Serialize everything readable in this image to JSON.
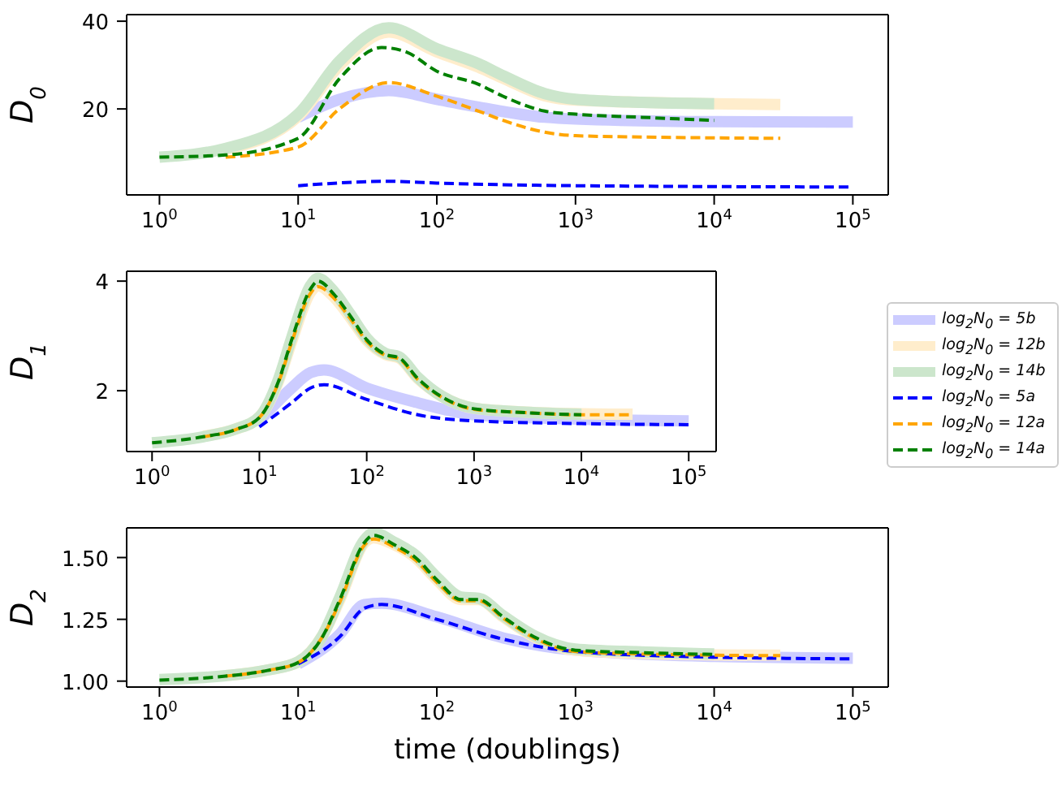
{
  "chart_data": [
    {
      "type": "line",
      "ylabel": "D$_{0}$",
      "log": "x",
      "xlim": [
        0.58,
        180000
      ],
      "ylim": [
        0.4,
        41.5
      ],
      "yticks": [
        20,
        40
      ],
      "xticks": [
        {
          "value": 1,
          "label": "10$^{0}$"
        },
        {
          "value": 10,
          "label": "10$^{1}$"
        },
        {
          "value": 100,
          "label": "10$^{2}$"
        },
        {
          "value": 1000,
          "label": "10$^{3}$"
        },
        {
          "value": 10000,
          "label": "10$^{4}$"
        },
        {
          "value": 100000,
          "label": "10$^{5}$"
        }
      ],
      "series": [
        {
          "color": "#ccccff",
          "line_style": "solid",
          "x": [
            10,
            20,
            45,
            100,
            200,
            600,
            1000,
            10000,
            100000
          ],
          "values": [
            18.1,
            22.2,
            24.2,
            22.2,
            20.4,
            18.1,
            17.7,
            17.1,
            17
          ]
        },
        {
          "color": "#ffedcc",
          "line_style": "solid",
          "x": [
            3,
            10,
            20,
            45,
            100,
            200,
            300,
            600,
            1000,
            10000,
            30000
          ],
          "values": [
            10.8,
            18.3,
            30,
            37.5,
            33,
            29.5,
            27,
            23,
            22,
            21.2,
            21
          ]
        },
        {
          "color": "#cce6cc",
          "line_style": "solid",
          "x": [
            1,
            3,
            10,
            20,
            45,
            100,
            200,
            300,
            600,
            1000,
            3000,
            10000
          ],
          "values": [
            9,
            11,
            18.8,
            31,
            38.5,
            33.7,
            30.3,
            27.6,
            23.5,
            22.2,
            21.5,
            21.2
          ]
        },
        {
          "color": "#0000ff",
          "line_style": "dashed",
          "x": [
            10,
            45,
            100,
            1000,
            100000
          ],
          "values": [
            2.5,
            3.5,
            3.1,
            2.5,
            2.2
          ]
        },
        {
          "color": "#ffa500",
          "line_style": "dashed",
          "x": [
            3,
            10,
            20,
            45,
            100,
            200,
            300,
            600,
            1000,
            3000,
            30000
          ],
          "values": [
            9,
            11.3,
            20.1,
            26,
            22.9,
            19.5,
            17.4,
            14.7,
            13.9,
            13.6,
            13.3
          ]
        },
        {
          "color": "#008000",
          "line_style": "dashed",
          "x": [
            1,
            3,
            10,
            20,
            40,
            60,
            100,
            200,
            300,
            600,
            1000,
            3000,
            10000
          ],
          "values": [
            9.0,
            9.5,
            13.3,
            27,
            34,
            33,
            28.6,
            25.6,
            22.9,
            19.5,
            18.8,
            18.1,
            17.4
          ]
        }
      ]
    },
    {
      "type": "line",
      "ylabel": "D$_{1}$",
      "log": "x",
      "legend": "right",
      "xlim": [
        0.58,
        180000
      ],
      "ylim": [
        0.89,
        4.18
      ],
      "yticks": [
        2,
        4
      ],
      "xticks": [
        {
          "value": 1,
          "label": "10$^{0}$"
        },
        {
          "value": 10,
          "label": "10$^{1}$"
        },
        {
          "value": 100,
          "label": "10$^{2}$"
        },
        {
          "value": 1000,
          "label": "10$^{3}$"
        },
        {
          "value": 10000,
          "label": "10$^{4}$"
        },
        {
          "value": 100000,
          "label": "10$^{5}$"
        }
      ],
      "series": [
        {
          "name": "log$_{2}$N$_{0}$ = 5b",
          "color": "#ccccff",
          "line_style": "solid",
          "x": [
            10,
            20,
            30,
            40,
            100,
            300,
            1000,
            10000,
            100000
          ],
          "values": [
            1.45,
            2.05,
            2.33,
            2.38,
            2.05,
            1.78,
            1.56,
            1.48,
            1.45
          ]
        },
        {
          "name": "log$_{2}$N$_{0}$ = 12b",
          "color": "#ffedcc",
          "line_style": "solid",
          "x": [
            3,
            6,
            10,
            15,
            20,
            30,
            35,
            50,
            70,
            100,
            150,
            200,
            300,
            500,
            1000,
            3000,
            10000,
            30000
          ],
          "values": [
            1.17,
            1.3,
            1.52,
            2.16,
            2.9,
            3.8,
            3.92,
            3.7,
            3.34,
            2.92,
            2.66,
            2.6,
            2.22,
            1.9,
            1.68,
            1.61,
            1.58,
            1.57
          ]
        },
        {
          "name": "log$_{2}$N$_{0}$ = 14b",
          "color": "#cce6cc",
          "line_style": "solid",
          "x": [
            1,
            3,
            6,
            10,
            15,
            20,
            30,
            35,
            50,
            70,
            100,
            150,
            200,
            300,
            500,
            1000,
            3000,
            10000
          ],
          "values": [
            1.05,
            1.16,
            1.3,
            1.52,
            2.2,
            2.97,
            3.92,
            4.05,
            3.8,
            3.4,
            2.96,
            2.68,
            2.62,
            2.24,
            1.9,
            1.68,
            1.61,
            1.57
          ]
        },
        {
          "name": "log$_{2}$N$_{0}$ = 5a",
          "color": "#0000ff",
          "line_style": "dashed",
          "x": [
            10,
            20,
            30,
            40,
            100,
            300,
            1000,
            10000,
            100000
          ],
          "values": [
            1.34,
            1.78,
            2.05,
            2.11,
            1.84,
            1.56,
            1.45,
            1.4,
            1.38
          ]
        },
        {
          "name": "log$_{2}$N$_{0}$ = 12a",
          "color": "#ffa500",
          "line_style": "dashed",
          "x": [
            3,
            6,
            10,
            15,
            20,
            30,
            35,
            50,
            70,
            100,
            150,
            200,
            300,
            500,
            1000,
            3000,
            10000,
            30000
          ],
          "values": [
            1.16,
            1.29,
            1.51,
            2.14,
            2.88,
            3.78,
            3.9,
            3.68,
            3.32,
            2.9,
            2.64,
            2.58,
            2.2,
            1.88,
            1.66,
            1.6,
            1.56,
            1.56
          ]
        },
        {
          "name": "log$_{2}$N$_{0}$ = 14a",
          "color": "#008000",
          "line_style": "dashed",
          "x": [
            1,
            3,
            6,
            10,
            15,
            20,
            30,
            35,
            50,
            70,
            100,
            150,
            200,
            300,
            500,
            1000,
            3000,
            10000
          ],
          "values": [
            1.05,
            1.16,
            1.29,
            1.51,
            2.16,
            2.93,
            3.86,
            4.0,
            3.75,
            3.37,
            2.93,
            2.66,
            2.6,
            2.22,
            1.89,
            1.67,
            1.6,
            1.56
          ]
        }
      ]
    },
    {
      "type": "line",
      "ylabel": "D$_{2}$",
      "xlabel": "time (doublings)",
      "log": "x",
      "xlim": [
        0.58,
        180000
      ],
      "ylim": [
        0.976,
        1.62
      ],
      "yticks": [
        {
          "value": 1,
          "label": "1.00"
        },
        {
          "value": 1.25,
          "label": "1.25"
        },
        {
          "value": 1.5,
          "label": "1.50"
        }
      ],
      "xticks": [
        {
          "value": 1,
          "label": "10$^{0}$"
        },
        {
          "value": 10,
          "label": "10$^{1}$"
        },
        {
          "value": 100,
          "label": "10$^{2}$"
        },
        {
          "value": 1000,
          "label": "10$^{3}$"
        },
        {
          "value": 10000,
          "label": "10$^{4}$"
        },
        {
          "value": 100000,
          "label": "10$^{5}$"
        }
      ],
      "series": [
        {
          "color": "#ccccff",
          "line_style": "solid",
          "x": [
            10,
            20,
            30,
            40,
            100,
            300,
            1000,
            10000,
            100000
          ],
          "values": [
            1.07,
            1.19,
            1.31,
            1.315,
            1.26,
            1.175,
            1.125,
            1.1,
            1.093
          ]
        },
        {
          "color": "#ffedcc",
          "line_style": "solid",
          "x": [
            3,
            6,
            10,
            15,
            20,
            30,
            35,
            50,
            70,
            100,
            150,
            200,
            300,
            500,
            1000,
            3000,
            10000,
            30000
          ],
          "values": [
            1.022,
            1.045,
            1.078,
            1.185,
            1.33,
            1.56,
            1.58,
            1.55,
            1.5,
            1.41,
            1.33,
            1.33,
            1.26,
            1.18,
            1.125,
            1.112,
            1.106,
            1.105
          ]
        },
        {
          "color": "#cce6cc",
          "line_style": "solid",
          "x": [
            1,
            3,
            6,
            10,
            15,
            20,
            30,
            35,
            50,
            70,
            100,
            150,
            200,
            300,
            500,
            1000,
            3000,
            10000
          ],
          "values": [
            1.006,
            1.022,
            1.045,
            1.078,
            1.185,
            1.34,
            1.57,
            1.6,
            1.56,
            1.51,
            1.42,
            1.34,
            1.335,
            1.265,
            1.185,
            1.13,
            1.118,
            1.11
          ]
        },
        {
          "color": "#0000ff",
          "line_style": "dashed",
          "x": [
            10,
            20,
            30,
            40,
            100,
            300,
            1000,
            10000,
            100000
          ],
          "values": [
            1.07,
            1.18,
            1.295,
            1.31,
            1.25,
            1.17,
            1.12,
            1.097,
            1.09
          ]
        },
        {
          "color": "#ffa500",
          "line_style": "dashed",
          "x": [
            3,
            6,
            10,
            15,
            20,
            30,
            35,
            50,
            70,
            100,
            150,
            200,
            300,
            500,
            1000,
            3000,
            10000,
            30000
          ],
          "values": [
            1.02,
            1.043,
            1.075,
            1.18,
            1.32,
            1.55,
            1.575,
            1.54,
            1.49,
            1.4,
            1.325,
            1.325,
            1.255,
            1.175,
            1.12,
            1.11,
            1.105,
            1.103
          ]
        },
        {
          "color": "#008000",
          "line_style": "dashed",
          "x": [
            1,
            3,
            6,
            10,
            15,
            20,
            30,
            35,
            50,
            70,
            100,
            150,
            200,
            300,
            500,
            1000,
            3000,
            10000
          ],
          "values": [
            1.004,
            1.02,
            1.043,
            1.075,
            1.18,
            1.33,
            1.56,
            1.59,
            1.55,
            1.5,
            1.41,
            1.33,
            1.33,
            1.26,
            1.18,
            1.125,
            1.115,
            1.108
          ]
        }
      ]
    }
  ]
}
